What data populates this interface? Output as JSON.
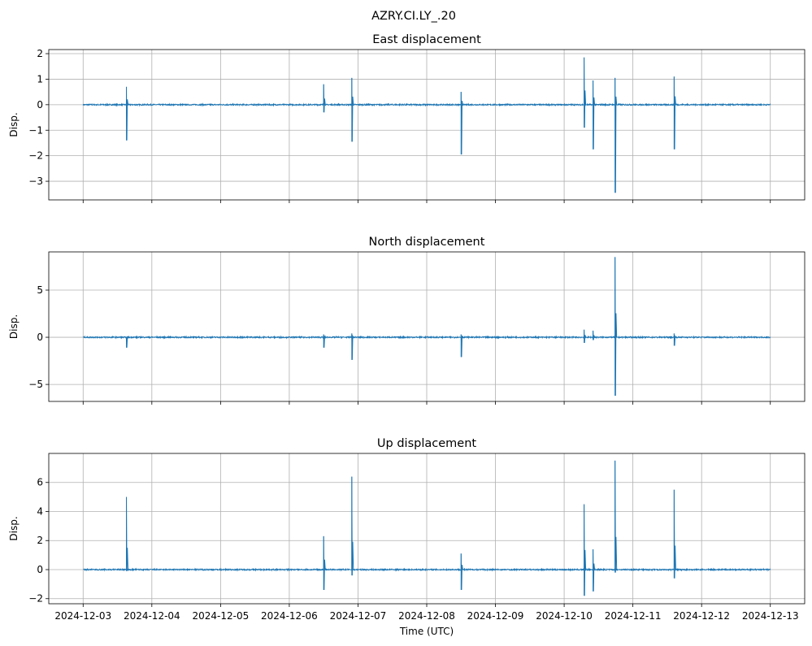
{
  "chart_data": [
    {
      "type": "line",
      "suptitle": "AZRY.CI.LY_.20",
      "title": "East displacement",
      "ylabel": "Disp.",
      "xlabel": "",
      "x_unit": "days since 2024-12-03 00:00 UTC",
      "xlim": [
        -0.5,
        10.5
      ],
      "ylim": [
        -3.73,
        2.16
      ],
      "yticks": [
        2,
        1,
        0,
        -1,
        -2,
        -3
      ],
      "ytick_labels": [
        "2",
        "1",
        "0",
        "−1",
        "−2",
        "−3"
      ],
      "grid": true,
      "color": "#1f77b4",
      "baseline": 0,
      "spikes": [
        {
          "x": 0.63,
          "max": 0.7,
          "min": -1.4
        },
        {
          "x": 3.5,
          "max": 0.8,
          "min": -0.3
        },
        {
          "x": 3.91,
          "max": 1.05,
          "min": -1.45
        },
        {
          "x": 5.5,
          "max": 0.5,
          "min": -1.95
        },
        {
          "x": 7.29,
          "max": 1.85,
          "min": -0.9
        },
        {
          "x": 7.42,
          "max": 0.95,
          "min": -1.75
        },
        {
          "x": 7.74,
          "max": 1.05,
          "min": -3.45
        },
        {
          "x": 8.6,
          "max": 1.1,
          "min": -1.75
        }
      ]
    },
    {
      "type": "line",
      "title": "North displacement",
      "ylabel": "Disp.",
      "xlabel": "",
      "x_unit": "days since 2024-12-03 00:00 UTC",
      "xlim": [
        -0.5,
        10.5
      ],
      "ylim": [
        -6.8,
        9.05
      ],
      "yticks": [
        5,
        0,
        -5
      ],
      "ytick_labels": [
        "5",
        "0",
        "−5"
      ],
      "grid": true,
      "color": "#1f77b4",
      "baseline": 0,
      "spikes": [
        {
          "x": 0.63,
          "max": 0.0,
          "min": -1.1
        },
        {
          "x": 3.5,
          "max": 0.3,
          "min": -1.1
        },
        {
          "x": 3.91,
          "max": 0.4,
          "min": -2.4
        },
        {
          "x": 5.5,
          "max": 0.3,
          "min": -2.1
        },
        {
          "x": 7.29,
          "max": 0.8,
          "min": -0.6
        },
        {
          "x": 7.42,
          "max": 0.7,
          "min": -0.3
        },
        {
          "x": 7.74,
          "max": 8.5,
          "min": -6.2
        },
        {
          "x": 8.6,
          "max": 0.4,
          "min": -0.9
        }
      ]
    },
    {
      "type": "line",
      "title": "Up displacement",
      "ylabel": "Disp.",
      "xlabel": "Time (UTC)",
      "x_unit": "days since 2024-12-03 00:00 UTC",
      "xlim": [
        -0.5,
        10.5
      ],
      "ylim": [
        -2.35,
        8.0
      ],
      "yticks": [
        6,
        4,
        2,
        0,
        -2
      ],
      "ytick_labels": [
        "6",
        "4",
        "2",
        "0",
        "−2"
      ],
      "grid": true,
      "color": "#1f77b4",
      "baseline": 0,
      "spikes": [
        {
          "x": 0.63,
          "max": 5.0,
          "min": -0.1
        },
        {
          "x": 3.5,
          "max": 2.3,
          "min": -1.4
        },
        {
          "x": 3.91,
          "max": 6.4,
          "min": -0.4
        },
        {
          "x": 5.5,
          "max": 1.1,
          "min": -1.4
        },
        {
          "x": 7.29,
          "max": 4.5,
          "min": -1.8
        },
        {
          "x": 7.42,
          "max": 1.4,
          "min": -1.5
        },
        {
          "x": 7.74,
          "max": 7.5,
          "min": -0.2
        },
        {
          "x": 8.6,
          "max": 5.5,
          "min": -0.6
        }
      ]
    }
  ],
  "xticks": [
    0,
    1,
    2,
    3,
    4,
    5,
    6,
    7,
    8,
    9,
    10
  ],
  "xtick_labels": [
    "2024-12-03",
    "2024-12-04",
    "2024-12-05",
    "2024-12-06",
    "2024-12-07",
    "2024-12-08",
    "2024-12-09",
    "2024-12-10",
    "2024-12-11",
    "2024-12-12",
    "2024-12-13"
  ]
}
